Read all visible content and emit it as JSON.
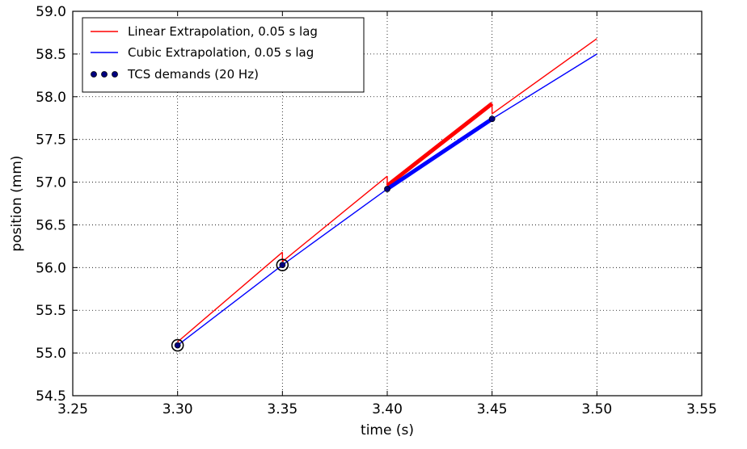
{
  "chart_data": {
    "type": "line",
    "title": "",
    "xlabel": "time (s)",
    "ylabel": "position (mm)",
    "xlim": [
      3.25,
      3.55
    ],
    "ylim": [
      54.5,
      59.0
    ],
    "xticks": [
      "3.25",
      "3.30",
      "3.35",
      "3.40",
      "3.45",
      "3.50",
      "3.55"
    ],
    "yticks": [
      "54.5",
      "55.0",
      "55.5",
      "56.0",
      "56.5",
      "57.0",
      "57.5",
      "58.0",
      "58.5",
      "59.0"
    ],
    "grid": true,
    "legend_position": "top-left",
    "series": [
      {
        "name": "Linear Extrapolation, 0.05 s lag",
        "color": "#ff0000",
        "kind": "line",
        "segments": [
          {
            "x": [
              3.3,
              3.35
            ],
            "y": [
              55.13,
              56.18
            ],
            "width": "thin"
          },
          {
            "x": [
              3.35,
              3.4
            ],
            "y": [
              56.07,
              57.07
            ],
            "width": "thin"
          },
          {
            "x": [
              3.4,
              3.45
            ],
            "y": [
              56.96,
              57.92
            ],
            "width": "thick"
          },
          {
            "x": [
              3.45,
              3.5
            ],
            "y": [
              57.8,
              58.68
            ],
            "width": "thin"
          }
        ]
      },
      {
        "name": "Cubic Extrapolation, 0.05 s lag",
        "color": "#0000ff",
        "kind": "line",
        "segments": [
          {
            "x": [
              3.3,
              3.35
            ],
            "y": [
              55.09,
              56.03
            ],
            "width": "thin"
          },
          {
            "x": [
              3.35,
              3.4
            ],
            "y": [
              56.03,
              56.92
            ],
            "width": "thin"
          },
          {
            "x": [
              3.4,
              3.45
            ],
            "y": [
              56.92,
              57.74
            ],
            "width": "thick"
          },
          {
            "x": [
              3.45,
              3.5
            ],
            "y": [
              57.74,
              58.5
            ],
            "width": "thin"
          }
        ]
      },
      {
        "name": "TCS demands (20 Hz)",
        "color": "#00007f",
        "kind": "scatter",
        "points": [
          {
            "x": 3.3,
            "y": 55.09,
            "circled": true
          },
          {
            "x": 3.35,
            "y": 56.03,
            "circled": true
          },
          {
            "x": 3.4,
            "y": 56.92,
            "circled": false
          },
          {
            "x": 3.45,
            "y": 57.74,
            "circled": false
          }
        ]
      }
    ]
  }
}
